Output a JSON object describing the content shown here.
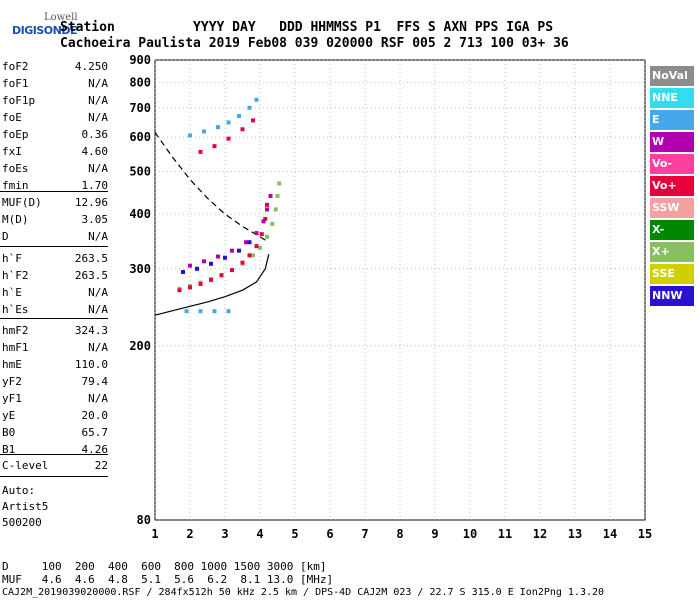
{
  "logo": {
    "line1": "Lowell",
    "line2": "DIGISONDE"
  },
  "header": {
    "line1": "Station          YYYY DAY   DDD HHMMSS P1  FFS S AXN PPS IGA PS",
    "line2": "Cachoeira Paulista 2019 Feb08 039 020000 RSF 005 2 713 100 03+ 36"
  },
  "params": {
    "group1": [
      {
        "k": "foF2",
        "v": "4.250"
      },
      {
        "k": "foF1",
        "v": "N/A"
      },
      {
        "k": "foF1p",
        "v": "N/A"
      },
      {
        "k": "foE",
        "v": "N/A"
      },
      {
        "k": "foEp",
        "v": "0.36"
      },
      {
        "k": "fxI",
        "v": "4.60"
      },
      {
        "k": "foEs",
        "v": "N/A"
      },
      {
        "k": "fmin",
        "v": "1.70"
      }
    ],
    "group2": [
      {
        "k": "MUF(D)",
        "v": "12.96"
      },
      {
        "k": "M(D)",
        "v": "3.05"
      },
      {
        "k": "D",
        "v": "N/A"
      }
    ],
    "group3": [
      {
        "k": "h`F",
        "v": "263.5"
      },
      {
        "k": "h`F2",
        "v": "263.5"
      },
      {
        "k": "h`E",
        "v": "N/A"
      },
      {
        "k": "h`Es",
        "v": "N/A"
      }
    ],
    "group4": [
      {
        "k": "hmF2",
        "v": "324.3"
      },
      {
        "k": "hmF1",
        "v": "N/A"
      },
      {
        "k": "hmE",
        "v": "110.0"
      },
      {
        "k": "yF2",
        "v": "79.4"
      },
      {
        "k": "yF1",
        "v": "N/A"
      },
      {
        "k": "yE",
        "v": "20.0"
      },
      {
        "k": "B0",
        "v": "65.7"
      },
      {
        "k": "B1",
        "v": "4.26"
      }
    ],
    "group5": [
      {
        "k": "C-level",
        "v": "22"
      }
    ],
    "auto": [
      "Auto:",
      "Artist5",
      "500200"
    ]
  },
  "legend": [
    {
      "label": "NoVal",
      "color": "#8c8c8c"
    },
    {
      "label": "NNE",
      "color": "#33ddf0"
    },
    {
      "label": "E",
      "color": "#45a8e8"
    },
    {
      "label": "W",
      "color": "#b000b0"
    },
    {
      "label": "Vo-",
      "color": "#ff3fa0"
    },
    {
      "label": "Vo+",
      "color": "#e8003c"
    },
    {
      "label": "SSW",
      "color": "#f5a0a0"
    },
    {
      "label": "X-",
      "color": "#008800"
    },
    {
      "label": "X+",
      "color": "#88c060"
    },
    {
      "label": "SSE",
      "color": "#d0d000"
    },
    {
      "label": "NNW",
      "color": "#2a10d0"
    }
  ],
  "chart_data": {
    "type": "scatter",
    "title": "",
    "xlabel": "",
    "ylabel": "",
    "xlim": [
      1,
      15
    ],
    "ylim": [
      80,
      900
    ],
    "ylog": true,
    "xticks": [
      1,
      2,
      3,
      4,
      5,
      6,
      7,
      8,
      9,
      10,
      11,
      12,
      13,
      14,
      15
    ],
    "yticks": [
      80,
      200,
      300,
      400,
      500,
      600,
      700,
      800,
      900
    ],
    "grid": "on",
    "series": [
      {
        "name": "X+",
        "color": "#88c060",
        "points": [
          [
            1.7,
            270
          ],
          [
            2.0,
            274
          ],
          [
            2.3,
            279
          ],
          [
            2.6,
            284
          ],
          [
            2.9,
            290
          ],
          [
            3.2,
            298
          ],
          [
            3.5,
            308
          ],
          [
            3.8,
            322
          ],
          [
            4.0,
            335
          ],
          [
            4.2,
            355
          ],
          [
            4.35,
            380
          ],
          [
            4.45,
            410
          ],
          [
            4.5,
            440
          ],
          [
            4.55,
            470
          ]
        ]
      },
      {
        "name": "Vo+",
        "color": "#e8003c",
        "points": [
          [
            1.7,
            268
          ],
          [
            2.0,
            272
          ],
          [
            2.3,
            277
          ],
          [
            2.6,
            283
          ],
          [
            2.9,
            290
          ],
          [
            3.2,
            298
          ],
          [
            3.5,
            310
          ],
          [
            3.7,
            322
          ],
          [
            3.9,
            338
          ],
          [
            4.05,
            360
          ],
          [
            4.15,
            390
          ],
          [
            4.2,
            420
          ]
        ]
      },
      {
        "name": "W",
        "color": "#b000b0",
        "points": [
          [
            2.0,
            305
          ],
          [
            2.4,
            312
          ],
          [
            2.8,
            320
          ],
          [
            3.2,
            330
          ],
          [
            3.6,
            345
          ],
          [
            3.9,
            362
          ],
          [
            4.1,
            385
          ],
          [
            4.2,
            410
          ],
          [
            4.3,
            440
          ]
        ]
      },
      {
        "name": "NNW",
        "color": "#2a10d0",
        "points": [
          [
            1.8,
            295
          ],
          [
            2.2,
            300
          ],
          [
            2.6,
            308
          ],
          [
            3.0,
            318
          ],
          [
            3.4,
            330
          ],
          [
            3.7,
            345
          ]
        ]
      },
      {
        "name": "E",
        "color": "#45a8e8",
        "points": [
          [
            2.0,
            605
          ],
          [
            2.4,
            618
          ],
          [
            2.8,
            632
          ],
          [
            3.1,
            648
          ],
          [
            3.4,
            670
          ],
          [
            3.7,
            700
          ],
          [
            3.9,
            730
          ],
          [
            1.9,
            240
          ],
          [
            2.3,
            240
          ],
          [
            2.7,
            240
          ],
          [
            3.1,
            240
          ]
        ]
      },
      {
        "name": "Vo+ (2nd)",
        "color": "#e8003c",
        "points": [
          [
            2.3,
            555
          ],
          [
            2.7,
            572
          ],
          [
            3.1,
            595
          ],
          [
            3.5,
            625
          ],
          [
            3.8,
            655
          ]
        ]
      }
    ],
    "curves": {
      "profile": [
        [
          1.0,
          235
        ],
        [
          1.8,
          244
        ],
        [
          2.5,
          252
        ],
        [
          3.0,
          259
        ],
        [
          3.5,
          268
        ],
        [
          3.9,
          280
        ],
        [
          4.15,
          300
        ],
        [
          4.25,
          324
        ]
      ],
      "muf_dashed": [
        [
          1.0,
          615
        ],
        [
          1.5,
          540
        ],
        [
          2.0,
          480
        ],
        [
          2.5,
          435
        ],
        [
          3.0,
          400
        ],
        [
          3.5,
          375
        ],
        [
          4.0,
          355
        ],
        [
          4.25,
          345
        ]
      ]
    }
  },
  "footer": {
    "row1": "D     100  200  400  600  800 1000 1500 3000 [km]",
    "row2": "MUF   4.6  4.6  4.8  5.1  5.6  6.2  8.1 13.0 [MHz]",
    "row3": "CAJ2M_2019039020000.RSF / 284fx512h 50 kHz 2.5 km / DPS-4D CAJ2M 023 / 22.7 S 315.0 E Ion2Png 1.3.20"
  }
}
